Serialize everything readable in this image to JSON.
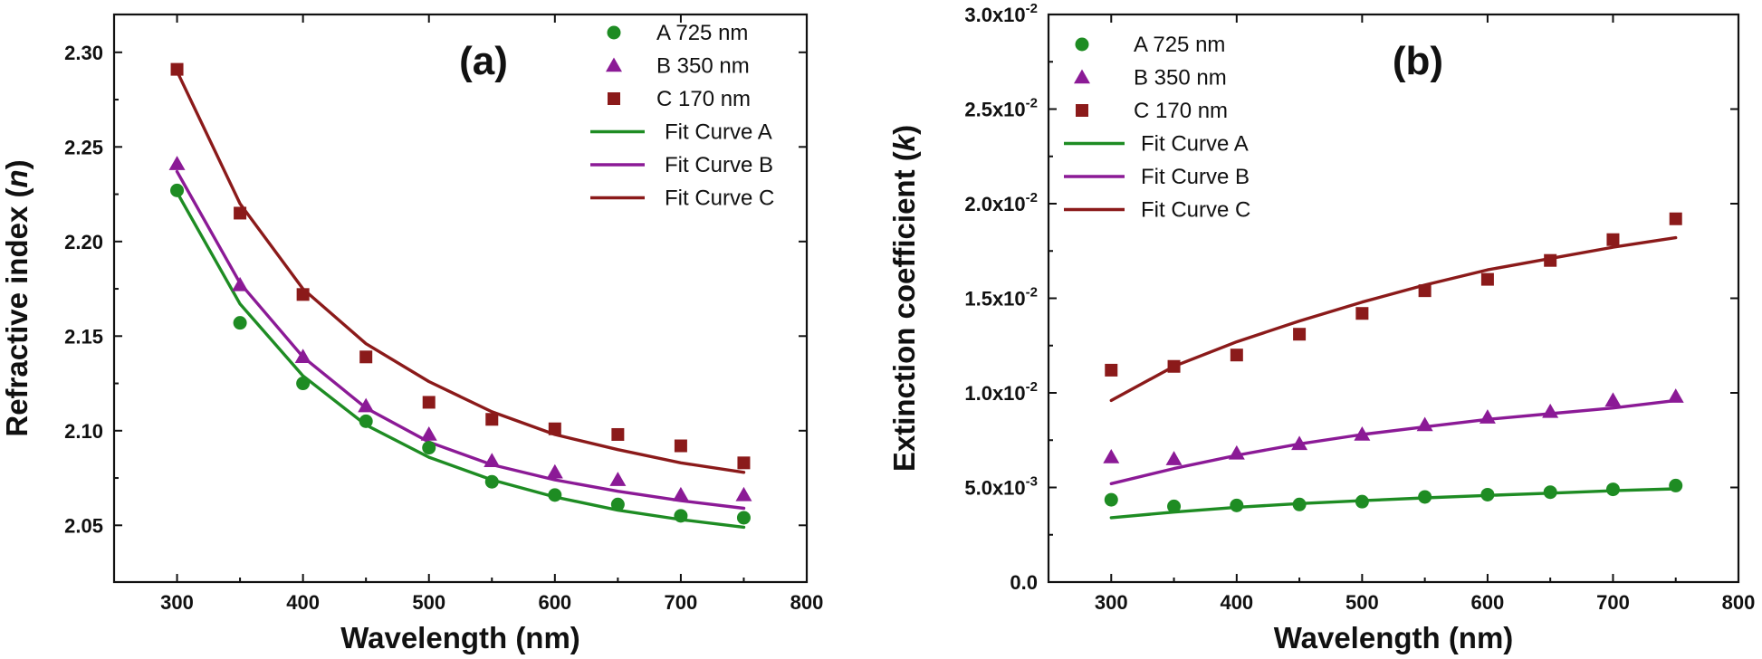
{
  "chart_data": [
    {
      "type": "scatter",
      "panel_label": "(a)",
      "xlabel": "Wavelength (nm)",
      "ylabel_main": "Refractive index (",
      "ylabel_italic": "n",
      "ylabel_end": ")",
      "xlim": [
        250,
        800
      ],
      "ylim": [
        2.02,
        2.32
      ],
      "xticks": [
        300,
        400,
        500,
        600,
        700,
        800
      ],
      "xtick_labels": [
        "300",
        "400",
        "500",
        "600",
        "700",
        "800"
      ],
      "yticks": [
        2.05,
        2.1,
        2.15,
        2.2,
        2.25,
        2.3
      ],
      "ytick_labels": [
        "2.05",
        "2.10",
        "2.15",
        "2.20",
        "2.25",
        "2.30"
      ],
      "legend_position": "top-right",
      "x": [
        300,
        350,
        400,
        450,
        500,
        550,
        600,
        650,
        700,
        750
      ],
      "series": [
        {
          "name": "A 725 nm",
          "marker": "circle",
          "color": "#1e8c23",
          "values": [
            2.227,
            2.157,
            2.125,
            2.105,
            2.091,
            2.073,
            2.066,
            2.061,
            2.055,
            2.054
          ]
        },
        {
          "name": "B 350 nm",
          "marker": "triangle",
          "color": "#8b1a96",
          "values": [
            2.241,
            2.177,
            2.139,
            2.113,
            2.098,
            2.084,
            2.078,
            2.074,
            2.066,
            2.066
          ]
        },
        {
          "name": "C 170 nm",
          "marker": "square",
          "color": "#8b1a1a",
          "values": [
            2.291,
            2.215,
            2.172,
            2.139,
            2.115,
            2.106,
            2.101,
            2.098,
            2.092,
            2.083
          ]
        }
      ],
      "fit_curves": [
        {
          "name": "Fit Curve A",
          "color": "#1e8c23",
          "values": [
            2.226,
            2.167,
            2.129,
            2.103,
            2.086,
            2.074,
            2.065,
            2.058,
            2.053,
            2.049
          ]
        },
        {
          "name": "Fit Curve B",
          "color": "#8b1a96",
          "values": [
            2.237,
            2.178,
            2.139,
            2.112,
            2.094,
            2.082,
            2.074,
            2.068,
            2.063,
            2.059
          ]
        },
        {
          "name": "Fit Curve C",
          "color": "#8b1a1a",
          "values": [
            2.29,
            2.22,
            2.175,
            2.146,
            2.126,
            2.11,
            2.098,
            2.09,
            2.083,
            2.078
          ]
        }
      ]
    },
    {
      "type": "scatter",
      "panel_label": "(b)",
      "xlabel": "Wavelength (nm)",
      "ylabel_main": "Extinction coefficient (",
      "ylabel_italic": "k",
      "ylabel_end": ")",
      "xlim": [
        250,
        800
      ],
      "ylim": [
        0,
        0.03
      ],
      "xticks": [
        300,
        400,
        500,
        600,
        700,
        800
      ],
      "xtick_labels": [
        "300",
        "400",
        "500",
        "600",
        "700",
        "800"
      ],
      "yticks": [
        0,
        0.005,
        0.01,
        0.015,
        0.02,
        0.025,
        0.03
      ],
      "ytick_labels": [
        {
          "mantissa": "0.0",
          "exp": ""
        },
        {
          "mantissa": "5.0x10",
          "exp": "-3"
        },
        {
          "mantissa": "1.0x10",
          "exp": "-2"
        },
        {
          "mantissa": "1.5x10",
          "exp": "-2"
        },
        {
          "mantissa": "2.0x10",
          "exp": "-2"
        },
        {
          "mantissa": "2.5x10",
          "exp": "-2"
        },
        {
          "mantissa": "3.0x10",
          "exp": "-2"
        }
      ],
      "legend_position": "top-left",
      "x": [
        300,
        350,
        400,
        450,
        500,
        550,
        600,
        650,
        700,
        750
      ],
      "series": [
        {
          "name": "A 725 nm",
          "marker": "circle",
          "color": "#1e8c23",
          "values": [
            0.00435,
            0.004,
            0.00405,
            0.0041,
            0.00425,
            0.0045,
            0.00462,
            0.00475,
            0.0049,
            0.0051
          ]
        },
        {
          "name": "B 350 nm",
          "marker": "triangle",
          "color": "#8b1a96",
          "values": [
            0.0066,
            0.0065,
            0.0068,
            0.0073,
            0.0078,
            0.0083,
            0.0087,
            0.009,
            0.0096,
            0.0098
          ]
        },
        {
          "name": "C 170 nm",
          "marker": "square",
          "color": "#8b1a1a",
          "values": [
            0.0112,
            0.0114,
            0.012,
            0.0131,
            0.0142,
            0.0154,
            0.016,
            0.017,
            0.0181,
            0.0192
          ]
        }
      ],
      "fit_curves": [
        {
          "name": "Fit Curve A",
          "color": "#1e8c23",
          "values": [
            0.0034,
            0.0037,
            0.00395,
            0.00415,
            0.0043,
            0.00445,
            0.00458,
            0.0047,
            0.00483,
            0.00493
          ]
        },
        {
          "name": "Fit Curve B",
          "color": "#8b1a96",
          "values": [
            0.0052,
            0.006,
            0.0067,
            0.0073,
            0.0078,
            0.0082,
            0.0086,
            0.0089,
            0.0092,
            0.0096
          ]
        },
        {
          "name": "Fit Curve C",
          "color": "#8b1a1a",
          "values": [
            0.0096,
            0.0114,
            0.0127,
            0.0138,
            0.0148,
            0.0157,
            0.0165,
            0.0171,
            0.0177,
            0.0182
          ]
        }
      ]
    }
  ]
}
